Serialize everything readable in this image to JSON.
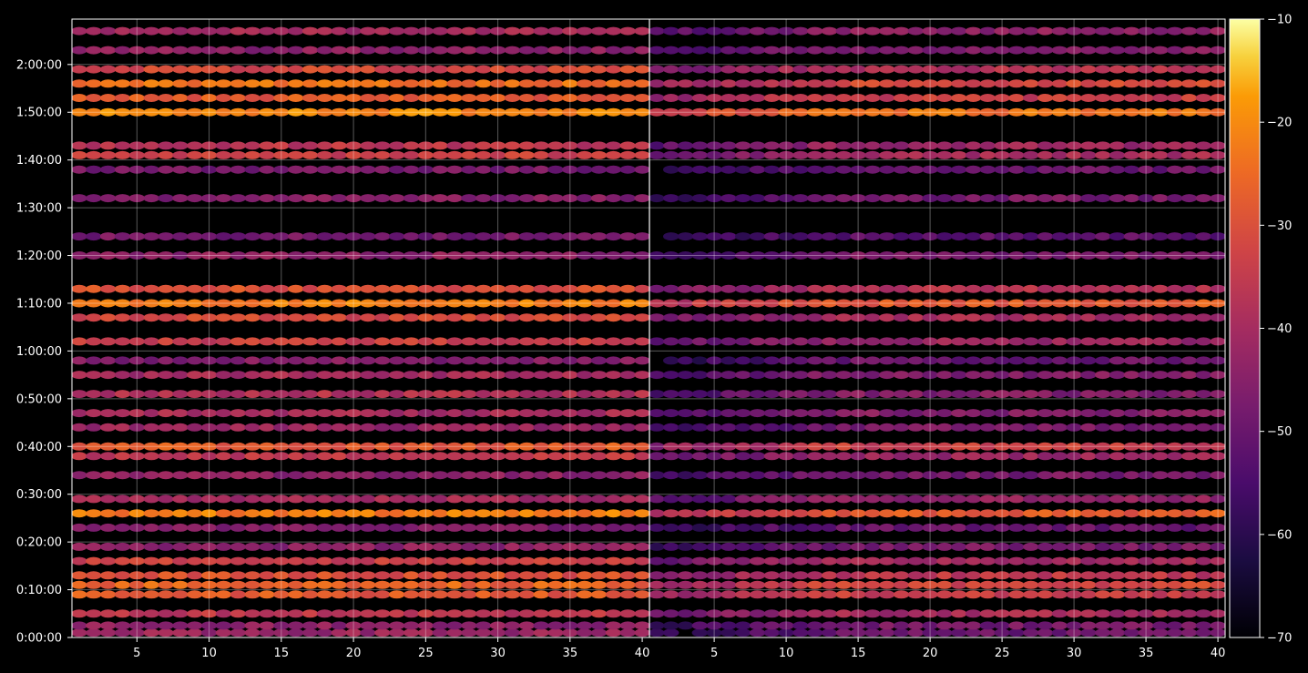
{
  "chart_data": {
    "type": "heatmap",
    "panels": [
      {
        "name": "",
        "x_range": [
          1,
          40
        ]
      },
      {
        "name": "",
        "x_range": [
          1,
          40
        ]
      }
    ],
    "x_ticks": [
      "5",
      "10",
      "15",
      "20",
      "25",
      "30",
      "35",
      "40"
    ],
    "x_tick_values": [
      5,
      10,
      15,
      20,
      25,
      30,
      35,
      40
    ],
    "y_ticks": [
      "0:00:00",
      "0:10:00",
      "0:20:00",
      "0:30:00",
      "0:40:00",
      "0:50:00",
      "1:00:00",
      "1:10:00",
      "1:20:00",
      "1:30:00",
      "1:40:00",
      "1:50:00",
      "2:00:00"
    ],
    "y_tick_seconds": [
      0,
      600,
      1200,
      1800,
      2400,
      3000,
      3600,
      4200,
      4800,
      5400,
      6000,
      6600,
      7200
    ],
    "y_max_seconds": 7770,
    "colorbar": {
      "colormap": "inferno",
      "range": [
        -70,
        -10
      ],
      "ticks": [
        "−10",
        "−20",
        "−30",
        "−40",
        "−50",
        "−60",
        "−70"
      ],
      "tick_values": [
        -10,
        -20,
        -30,
        -40,
        -50,
        -60,
        -70
      ]
    },
    "grid": true,
    "bands": [
      {
        "t": 60,
        "left": -42,
        "right": -50
      },
      {
        "t": 150,
        "left": -44,
        "right": -48
      },
      {
        "t": 300,
        "left": -36,
        "right": -40
      },
      {
        "t": 540,
        "left": -28,
        "right": -34
      },
      {
        "t": 660,
        "left": -26,
        "right": -32
      },
      {
        "t": 780,
        "left": -30,
        "right": -36
      },
      {
        "t": 960,
        "left": -34,
        "right": -40
      },
      {
        "t": 1140,
        "left": -44,
        "right": -48
      },
      {
        "t": 1380,
        "left": -46,
        "right": -50
      },
      {
        "t": 1560,
        "left": -22,
        "right": -28
      },
      {
        "t": 1740,
        "left": -40,
        "right": -44
      },
      {
        "t": 2040,
        "left": -44,
        "right": -48
      },
      {
        "t": 2280,
        "left": -36,
        "right": -42
      },
      {
        "t": 2400,
        "left": -28,
        "right": -34
      },
      {
        "t": 2640,
        "left": -42,
        "right": -48
      },
      {
        "t": 2820,
        "left": -40,
        "right": -46
      },
      {
        "t": 3060,
        "left": -38,
        "right": -46
      },
      {
        "t": 3300,
        "left": -40,
        "right": -46
      },
      {
        "t": 3480,
        "left": -46,
        "right": -50
      },
      {
        "t": 3720,
        "left": -34,
        "right": -42
      },
      {
        "t": 4020,
        "left": -32,
        "right": -40
      },
      {
        "t": 4200,
        "left": -22,
        "right": -28
      },
      {
        "t": 4380,
        "left": -30,
        "right": -38
      },
      {
        "t": 4800,
        "left": -44,
        "right": -48
      },
      {
        "t": 5040,
        "left": -48,
        "right": -52
      },
      {
        "t": 5520,
        "left": -46,
        "right": -48
      },
      {
        "t": 5880,
        "left": -48,
        "right": -50
      },
      {
        "t": 6060,
        "left": -34,
        "right": -40
      },
      {
        "t": 6180,
        "left": -36,
        "right": -42
      },
      {
        "t": 6600,
        "left": -20,
        "right": -24
      },
      {
        "t": 6780,
        "left": -28,
        "right": -34
      },
      {
        "t": 6960,
        "left": -24,
        "right": -32
      },
      {
        "t": 7140,
        "left": -32,
        "right": -38
      },
      {
        "t": 7380,
        "left": -44,
        "right": -46
      },
      {
        "t": 7620,
        "left": -40,
        "right": -44
      }
    ]
  }
}
